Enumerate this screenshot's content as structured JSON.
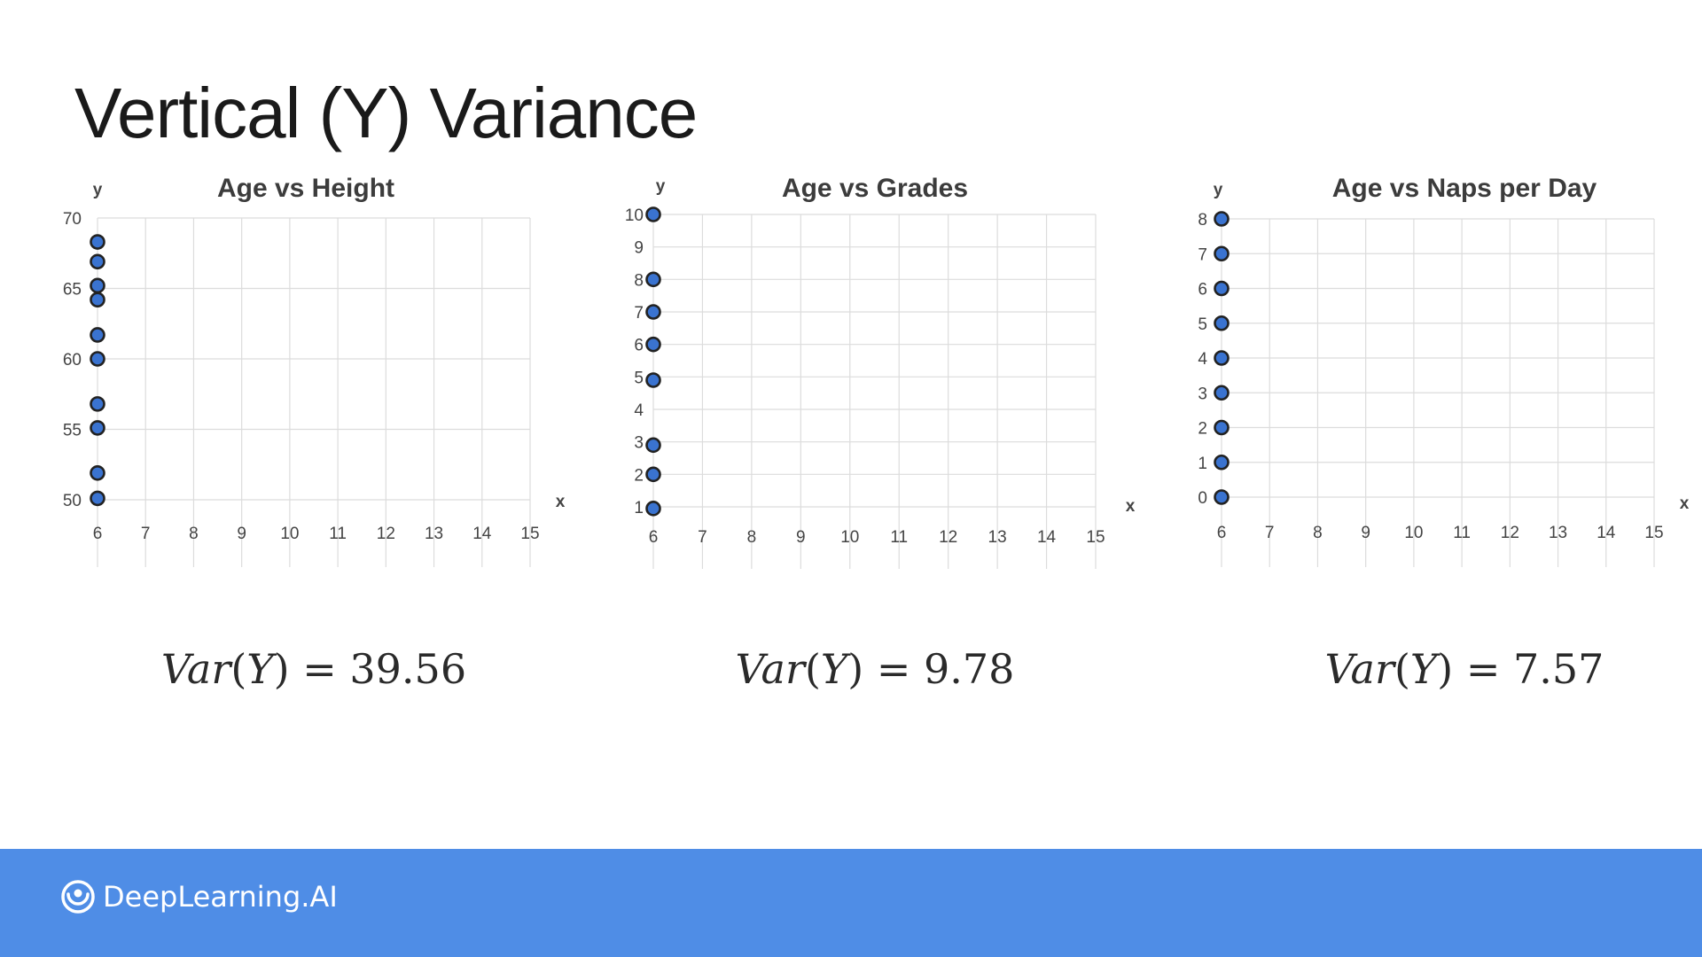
{
  "slide": {
    "title": "Vertical (Y) Variance"
  },
  "footer": {
    "brand": "DeepLearning.AI",
    "bar_color": "#4f8de6"
  },
  "formulas": [
    {
      "lhs_var": "Var",
      "lhs_arg": "Y",
      "value": "39.56"
    },
    {
      "lhs_var": "Var",
      "lhs_arg": "Y",
      "value": "9.78"
    },
    {
      "lhs_var": "Var",
      "lhs_arg": "Y",
      "value": "7.57"
    }
  ],
  "chart_data": [
    {
      "type": "scatter",
      "title": "Age vs Height",
      "xlabel": "x",
      "ylabel": "y",
      "xlim": [
        6,
        15
      ],
      "ylim": [
        50,
        70
      ],
      "xticks": [
        6,
        7,
        8,
        9,
        10,
        11,
        12,
        13,
        14,
        15
      ],
      "yticks": [
        50,
        55,
        60,
        65,
        70
      ],
      "grid": true,
      "point_color": "#3a73d0",
      "points": [
        {
          "x": 6,
          "y": 68.3
        },
        {
          "x": 6,
          "y": 66.9
        },
        {
          "x": 6,
          "y": 65.2
        },
        {
          "x": 6,
          "y": 64.2
        },
        {
          "x": 6,
          "y": 61.7
        },
        {
          "x": 6,
          "y": 60.0
        },
        {
          "x": 6,
          "y": 56.8
        },
        {
          "x": 6,
          "y": 55.1
        },
        {
          "x": 6,
          "y": 51.9
        },
        {
          "x": 6,
          "y": 50.1
        }
      ]
    },
    {
      "type": "scatter",
      "title": "Age vs Grades",
      "xlabel": "x",
      "ylabel": "y",
      "xlim": [
        6,
        15
      ],
      "ylim": [
        1,
        10
      ],
      "xticks": [
        6,
        7,
        8,
        9,
        10,
        11,
        12,
        13,
        14,
        15
      ],
      "yticks": [
        1,
        2,
        3,
        4,
        5,
        6,
        7,
        8,
        9,
        10
      ],
      "grid": true,
      "point_color": "#3a73d0",
      "points": [
        {
          "x": 6,
          "y": 10
        },
        {
          "x": 6,
          "y": 8
        },
        {
          "x": 6,
          "y": 7
        },
        {
          "x": 6,
          "y": 6
        },
        {
          "x": 6,
          "y": 4.9
        },
        {
          "x": 6,
          "y": 2.9
        },
        {
          "x": 6,
          "y": 2
        },
        {
          "x": 6,
          "y": 0.95
        }
      ]
    },
    {
      "type": "scatter",
      "title": "Age vs Naps per Day",
      "xlabel": "x",
      "ylabel": "y",
      "xlim": [
        6,
        15
      ],
      "ylim": [
        0,
        8
      ],
      "xticks": [
        6,
        7,
        8,
        9,
        10,
        11,
        12,
        13,
        14,
        15
      ],
      "yticks": [
        0,
        1,
        2,
        3,
        4,
        5,
        6,
        7,
        8
      ],
      "grid": true,
      "point_color": "#3a73d0",
      "points": [
        {
          "x": 6,
          "y": 8
        },
        {
          "x": 6,
          "y": 7
        },
        {
          "x": 6,
          "y": 6
        },
        {
          "x": 6,
          "y": 5
        },
        {
          "x": 6,
          "y": 4
        },
        {
          "x": 6,
          "y": 3
        },
        {
          "x": 6,
          "y": 2
        },
        {
          "x": 6,
          "y": 1
        },
        {
          "x": 6,
          "y": 0
        }
      ]
    }
  ]
}
